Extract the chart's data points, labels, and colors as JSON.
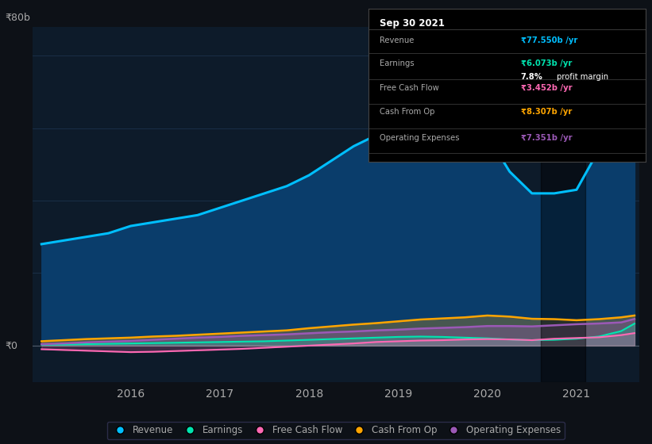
{
  "bg_color": "#0d1117",
  "plot_bg_color": "#0d1b2a",
  "y_label": "₹80b",
  "y_zero_label": "₹0",
  "ylim": [
    -10,
    88
  ],
  "x_years": [
    2015.0,
    2015.25,
    2015.5,
    2015.75,
    2016.0,
    2016.25,
    2016.5,
    2016.75,
    2017.0,
    2017.25,
    2017.5,
    2017.75,
    2018.0,
    2018.25,
    2018.5,
    2018.75,
    2019.0,
    2019.25,
    2019.5,
    2019.75,
    2020.0,
    2020.25,
    2020.5,
    2020.75,
    2021.0,
    2021.25,
    2021.5,
    2021.65
  ],
  "revenue": [
    28,
    29,
    30,
    31,
    33,
    34,
    35,
    36,
    38,
    40,
    42,
    44,
    47,
    51,
    55,
    58,
    62,
    64,
    63,
    61,
    58,
    48,
    42,
    42,
    43,
    54,
    67,
    77.5
  ],
  "earnings": [
    0.3,
    0.3,
    0.4,
    0.5,
    0.6,
    0.7,
    0.8,
    0.9,
    1.0,
    1.1,
    1.2,
    1.4,
    1.6,
    1.8,
    2.0,
    2.2,
    2.4,
    2.5,
    2.4,
    2.2,
    2.0,
    1.7,
    1.5,
    1.6,
    1.9,
    2.5,
    4.0,
    6.073
  ],
  "free_cash_flow": [
    -1.0,
    -1.2,
    -1.4,
    -1.6,
    -1.8,
    -1.7,
    -1.5,
    -1.3,
    -1.1,
    -0.9,
    -0.6,
    -0.3,
    0.0,
    0.3,
    0.6,
    1.0,
    1.2,
    1.4,
    1.5,
    1.7,
    1.8,
    1.7,
    1.5,
    1.9,
    2.1,
    2.3,
    2.9,
    3.452
  ],
  "cash_from_op": [
    1.2,
    1.5,
    1.8,
    2.0,
    2.2,
    2.5,
    2.7,
    3.0,
    3.3,
    3.6,
    3.9,
    4.2,
    4.8,
    5.3,
    5.8,
    6.2,
    6.7,
    7.2,
    7.5,
    7.8,
    8.3,
    8.0,
    7.4,
    7.3,
    7.0,
    7.3,
    7.8,
    8.307
  ],
  "op_expenses": [
    0.4,
    0.6,
    0.9,
    1.1,
    1.3,
    1.6,
    1.9,
    2.2,
    2.4,
    2.7,
    2.9,
    3.1,
    3.4,
    3.7,
    3.9,
    4.2,
    4.4,
    4.7,
    4.9,
    5.1,
    5.4,
    5.4,
    5.3,
    5.6,
    5.9,
    6.1,
    6.4,
    7.351
  ],
  "revenue_color": "#00bfff",
  "earnings_color": "#00e5b0",
  "free_cash_flow_color": "#ff69b4",
  "cash_from_op_color": "#ffa500",
  "op_expenses_color": "#9b59b6",
  "revenue_fill": "#0a3d6b",
  "grid_color": "#1e3550",
  "text_color": "#aaaaaa",
  "tooltip_border": "#444444",
  "revenue_tooltip_color": "#00bfff",
  "earnings_tooltip_color": "#00e5b0",
  "fcf_tooltip_color": "#ff69b4",
  "cashop_tooltip_color": "#ffa500",
  "opex_tooltip_color": "#9b59b6",
  "legend_border_color": "#333355",
  "x_ticks": [
    2016,
    2017,
    2018,
    2019,
    2020,
    2021
  ],
  "x_tick_labels": [
    "2016",
    "2017",
    "2018",
    "2019",
    "2020",
    "2021"
  ],
  "tooltip_title": "Sep 30 2021",
  "tt_revenue_label": "Revenue",
  "tt_revenue_value": "₹77.550b /yr",
  "tt_earnings_label": "Earnings",
  "tt_earnings_value": "₹6.073b /yr",
  "tt_margin_pct": "7.8%",
  "tt_margin_text": " profit margin",
  "tt_fcf_label": "Free Cash Flow",
  "tt_fcf_value": "₹3.452b /yr",
  "tt_cashop_label": "Cash From Op",
  "tt_cashop_value": "₹8.307b /yr",
  "tt_opex_label": "Operating Expenses",
  "tt_opex_value": "₹7.351b /yr",
  "legend_items": [
    "Revenue",
    "Earnings",
    "Free Cash Flow",
    "Cash From Op",
    "Operating Expenses"
  ],
  "legend_colors": [
    "#00bfff",
    "#00e5b0",
    "#ff69b4",
    "#ffa500",
    "#9b59b6"
  ],
  "dark_band_x0": 2020.6,
  "dark_band_x1": 2021.1
}
